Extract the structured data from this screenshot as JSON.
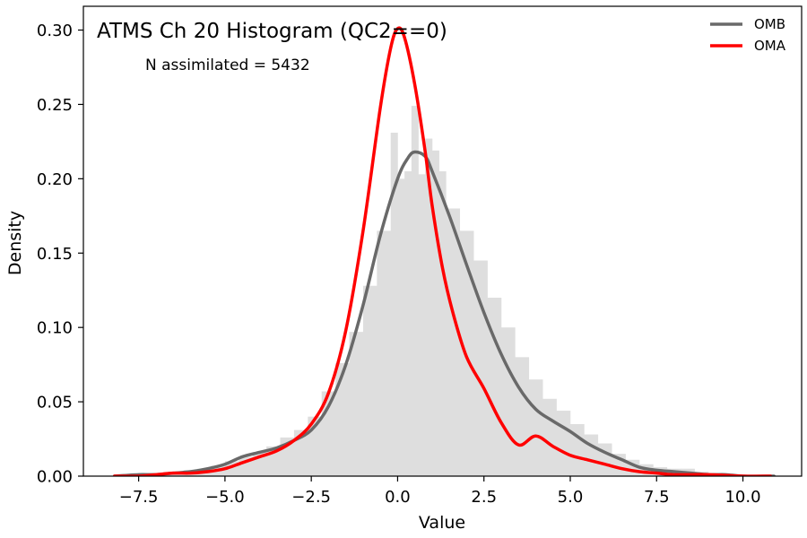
{
  "chart_data": {
    "type": "line",
    "title": "ATMS Ch 20 Histogram (QC2==0)",
    "annotation": "N assimilated = 5432",
    "xlabel": "Value",
    "ylabel": "Density",
    "xlim": [
      -9.1,
      11.7
    ],
    "ylim": [
      0.0,
      0.316
    ],
    "x_ticks": [
      -7.5,
      -5.0,
      -2.5,
      0.0,
      2.5,
      5.0,
      7.5,
      10.0
    ],
    "x_tick_labels": [
      "−7.5",
      "−5.0",
      "−2.5",
      "0.0",
      "2.5",
      "5.0",
      "7.5",
      "10.0"
    ],
    "y_ticks": [
      0.0,
      0.05,
      0.1,
      0.15,
      0.2,
      0.25,
      0.3
    ],
    "y_tick_labels": [
      "0.00",
      "0.05",
      "0.10",
      "0.15",
      "0.20",
      "0.25",
      "0.30"
    ],
    "grid": false,
    "legend_position": "top-right",
    "histogram": {
      "color": "#dedede",
      "bin_edges": [
        -8.2,
        -7.8,
        -7.4,
        -7.0,
        -6.6,
        -6.2,
        -5.8,
        -5.4,
        -5.0,
        -4.6,
        -4.2,
        -3.8,
        -3.4,
        -3.0,
        -2.6,
        -2.2,
        -1.8,
        -1.4,
        -1.0,
        -0.6,
        -0.2,
        0.0,
        0.2,
        0.4,
        0.6,
        0.8,
        1.0,
        1.2,
        1.4,
        1.8,
        2.2,
        2.6,
        3.0,
        3.4,
        3.8,
        4.2,
        4.6,
        5.0,
        5.4,
        5.8,
        6.2,
        6.6,
        7.0,
        7.4,
        7.8,
        8.2,
        8.6,
        9.0,
        9.4,
        9.8
      ],
      "densities": [
        0.001,
        0.001,
        0.002,
        0.002,
        0.003,
        0.004,
        0.005,
        0.007,
        0.01,
        0.013,
        0.016,
        0.02,
        0.026,
        0.031,
        0.04,
        0.057,
        0.076,
        0.097,
        0.128,
        0.165,
        0.231,
        0.2,
        0.205,
        0.249,
        0.203,
        0.227,
        0.219,
        0.205,
        0.18,
        0.165,
        0.145,
        0.12,
        0.1,
        0.08,
        0.065,
        0.052,
        0.044,
        0.035,
        0.028,
        0.022,
        0.015,
        0.011,
        0.008,
        0.006,
        0.005,
        0.005,
        0.003,
        0.002,
        0.001
      ]
    },
    "series": [
      {
        "name": "OMB",
        "color": "#696969",
        "x": [
          -8.2,
          -7.5,
          -7.0,
          -6.5,
          -6.0,
          -5.5,
          -5.0,
          -4.5,
          -4.0,
          -3.5,
          -3.0,
          -2.5,
          -2.0,
          -1.5,
          -1.0,
          -0.5,
          0.0,
          0.3,
          0.5,
          0.8,
          1.0,
          1.5,
          2.0,
          2.5,
          3.0,
          3.5,
          4.0,
          4.5,
          5.0,
          5.5,
          6.0,
          6.5,
          7.0,
          7.5,
          8.0,
          8.5,
          9.0,
          9.5,
          10.0,
          10.9
        ],
        "values": [
          0.0,
          0.001,
          0.001,
          0.002,
          0.003,
          0.005,
          0.008,
          0.013,
          0.016,
          0.019,
          0.024,
          0.031,
          0.047,
          0.075,
          0.115,
          0.162,
          0.2,
          0.214,
          0.218,
          0.215,
          0.205,
          0.175,
          0.142,
          0.11,
          0.082,
          0.06,
          0.045,
          0.037,
          0.03,
          0.022,
          0.016,
          0.011,
          0.006,
          0.004,
          0.003,
          0.002,
          0.001,
          0.001,
          0.0,
          0.0
        ]
      },
      {
        "name": "OMA",
        "color": "#ff0000",
        "x": [
          -8.2,
          -7.5,
          -7.0,
          -6.5,
          -6.0,
          -5.5,
          -5.0,
          -4.5,
          -4.0,
          -3.5,
          -3.0,
          -2.5,
          -2.0,
          -1.5,
          -1.0,
          -0.5,
          -0.2,
          0.0,
          0.2,
          0.5,
          0.8,
          1.0,
          1.3,
          1.6,
          2.0,
          2.5,
          3.0,
          3.5,
          4.0,
          4.5,
          5.0,
          5.5,
          6.0,
          6.5,
          7.0,
          7.5,
          8.0,
          9.0,
          10.0,
          10.8
        ],
        "values": [
          0.0,
          0.0,
          0.001,
          0.002,
          0.002,
          0.003,
          0.005,
          0.009,
          0.013,
          0.017,
          0.024,
          0.035,
          0.056,
          0.098,
          0.165,
          0.248,
          0.288,
          0.301,
          0.295,
          0.263,
          0.218,
          0.182,
          0.14,
          0.11,
          0.08,
          0.059,
          0.036,
          0.021,
          0.027,
          0.02,
          0.014,
          0.011,
          0.008,
          0.005,
          0.003,
          0.002,
          0.001,
          0.001,
          0.0,
          0.0
        ]
      }
    ]
  }
}
